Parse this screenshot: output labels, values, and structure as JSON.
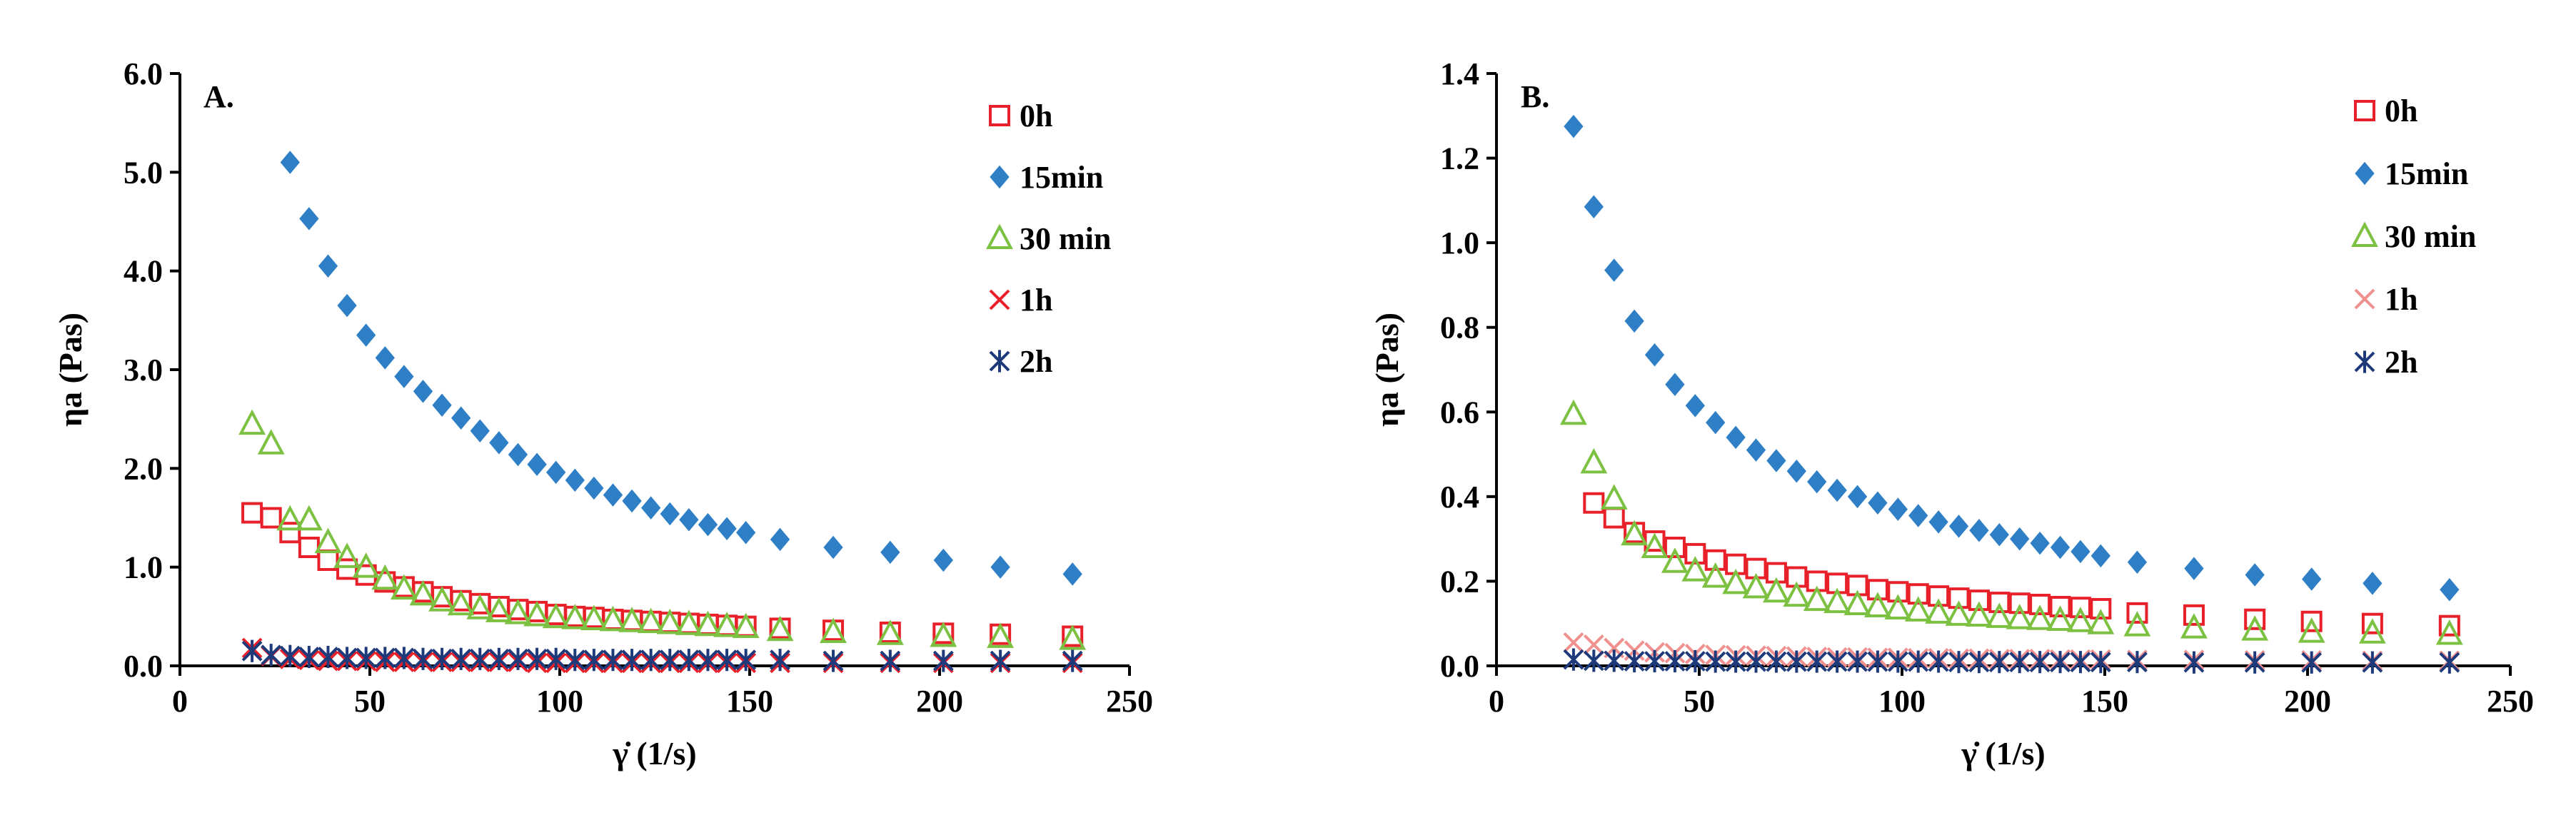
{
  "chart_data": [
    {
      "type": "scatter",
      "panel": "A.",
      "xlabel": "γ̇ (1/s)",
      "ylabel": "ηa (Pas)",
      "xlim": [
        0,
        250
      ],
      "ylim": [
        0,
        6
      ],
      "xticks": [
        0,
        50,
        100,
        150,
        200,
        250
      ],
      "yticks": [
        0,
        1,
        2,
        3,
        4,
        5,
        6
      ],
      "xtick_labels": [
        "0",
        "50",
        "100",
        "150",
        "200",
        "250"
      ],
      "ytick_labels": [
        "0.0",
        "1.0",
        "2.0",
        "3.0",
        "4.0",
        "5.0",
        "6.0"
      ],
      "legend_position": "top-right",
      "series": [
        {
          "name": "0h",
          "marker": "square",
          "color": "#e8202a",
          "x": [
            19,
            24,
            29,
            34,
            39,
            44,
            49,
            54,
            59,
            64,
            69,
            74,
            79,
            84,
            89,
            94,
            99,
            104,
            109,
            114,
            119,
            124,
            129,
            134,
            139,
            144,
            149,
            158,
            172,
            187,
            201,
            216,
            235
          ],
          "y": [
            1.55,
            1.5,
            1.35,
            1.2,
            1.07,
            0.98,
            0.92,
            0.85,
            0.8,
            0.75,
            0.7,
            0.66,
            0.63,
            0.6,
            0.57,
            0.55,
            0.52,
            0.5,
            0.49,
            0.47,
            0.46,
            0.45,
            0.44,
            0.43,
            0.42,
            0.41,
            0.4,
            0.38,
            0.36,
            0.34,
            0.33,
            0.32,
            0.3
          ]
        },
        {
          "name": "15min",
          "marker": "diamond",
          "color": "#2e7fc6",
          "x": [
            29,
            34,
            39,
            44,
            49,
            54,
            59,
            64,
            69,
            74,
            79,
            84,
            89,
            94,
            99,
            104,
            109,
            114,
            119,
            124,
            129,
            134,
            139,
            144,
            149,
            158,
            172,
            187,
            201,
            216,
            235
          ],
          "y": [
            5.1,
            4.53,
            4.05,
            3.65,
            3.35,
            3.12,
            2.93,
            2.78,
            2.64,
            2.51,
            2.38,
            2.26,
            2.14,
            2.04,
            1.96,
            1.88,
            1.8,
            1.73,
            1.67,
            1.6,
            1.54,
            1.48,
            1.43,
            1.39,
            1.35,
            1.28,
            1.2,
            1.15,
            1.07,
            1.0,
            0.93
          ]
        },
        {
          "name": "30 min",
          "marker": "triangle",
          "color": "#7dc142",
          "x": [
            19,
            24,
            29,
            34,
            39,
            44,
            49,
            54,
            59,
            64,
            69,
            74,
            79,
            84,
            89,
            94,
            99,
            104,
            109,
            114,
            119,
            124,
            129,
            134,
            139,
            144,
            149,
            158,
            172,
            187,
            201,
            216,
            235
          ],
          "y": [
            2.45,
            2.25,
            1.48,
            1.48,
            1.25,
            1.1,
            1.0,
            0.88,
            0.78,
            0.72,
            0.66,
            0.62,
            0.58,
            0.55,
            0.53,
            0.51,
            0.49,
            0.48,
            0.47,
            0.46,
            0.45,
            0.44,
            0.43,
            0.42,
            0.41,
            0.4,
            0.39,
            0.36,
            0.34,
            0.32,
            0.3,
            0.29,
            0.27
          ]
        },
        {
          "name": "1h",
          "marker": "x",
          "color": "#e8202a",
          "x": [
            19,
            24,
            29,
            34,
            39,
            44,
            49,
            54,
            59,
            64,
            69,
            74,
            79,
            84,
            89,
            94,
            99,
            104,
            109,
            114,
            119,
            124,
            129,
            134,
            139,
            144,
            149,
            158,
            172,
            187,
            201,
            216,
            235
          ],
          "y": [
            0.18,
            0.1,
            0.07,
            0.06,
            0.05,
            0.05,
            0.05,
            0.04,
            0.04,
            0.04,
            0.04,
            0.04,
            0.04,
            0.04,
            0.04,
            0.03,
            0.03,
            0.03,
            0.03,
            0.03,
            0.03,
            0.03,
            0.03,
            0.03,
            0.03,
            0.03,
            0.03,
            0.03,
            0.03,
            0.03,
            0.03,
            0.03,
            0.03
          ]
        },
        {
          "name": "2h",
          "marker": "star",
          "color": "#1f3a7a",
          "x": [
            19,
            24,
            29,
            34,
            39,
            44,
            49,
            54,
            59,
            64,
            69,
            74,
            79,
            84,
            89,
            94,
            99,
            104,
            109,
            114,
            119,
            124,
            129,
            134,
            139,
            144,
            149,
            158,
            172,
            187,
            201,
            216,
            235
          ],
          "y": [
            0.15,
            0.11,
            0.1,
            0.09,
            0.09,
            0.08,
            0.08,
            0.08,
            0.08,
            0.07,
            0.07,
            0.07,
            0.07,
            0.07,
            0.07,
            0.07,
            0.07,
            0.06,
            0.06,
            0.06,
            0.06,
            0.06,
            0.06,
            0.06,
            0.06,
            0.06,
            0.06,
            0.06,
            0.05,
            0.05,
            0.05,
            0.05,
            0.05
          ]
        }
      ]
    },
    {
      "type": "scatter",
      "panel": "B.",
      "xlabel": "γ̇ (1/s)",
      "ylabel": "ηa (Pas)",
      "xlim": [
        0,
        250
      ],
      "ylim": [
        0,
        1.4
      ],
      "xticks": [
        0,
        50,
        100,
        150,
        200,
        250
      ],
      "yticks": [
        0,
        0.2,
        0.4,
        0.6,
        0.8,
        1.0,
        1.2,
        1.4
      ],
      "xtick_labels": [
        "0",
        "50",
        "100",
        "150",
        "200",
        "250"
      ],
      "ytick_labels": [
        "0.0",
        "0.2",
        "0.4",
        "0.6",
        "0.8",
        "1.0",
        "1.2",
        "1.4"
      ],
      "legend_position": "top-right",
      "series": [
        {
          "name": "0h",
          "marker": "square",
          "color": "#e8202a",
          "x": [
            24,
            29,
            34,
            39,
            44,
            49,
            54,
            59,
            64,
            69,
            74,
            79,
            84,
            89,
            94,
            99,
            104,
            109,
            114,
            119,
            124,
            129,
            134,
            139,
            144,
            149,
            158,
            172,
            187,
            201,
            216,
            235
          ],
          "y": [
            0.385,
            0.35,
            0.315,
            0.295,
            0.28,
            0.265,
            0.25,
            0.24,
            0.23,
            0.22,
            0.21,
            0.2,
            0.195,
            0.19,
            0.18,
            0.175,
            0.17,
            0.165,
            0.16,
            0.155,
            0.15,
            0.148,
            0.145,
            0.14,
            0.138,
            0.135,
            0.125,
            0.12,
            0.11,
            0.105,
            0.1,
            0.095
          ]
        },
        {
          "name": "15min",
          "marker": "diamond",
          "color": "#2e7fc6",
          "x": [
            19,
            24,
            29,
            34,
            39,
            44,
            49,
            54,
            59,
            64,
            69,
            74,
            79,
            84,
            89,
            94,
            99,
            104,
            109,
            114,
            119,
            124,
            129,
            134,
            139,
            144,
            149,
            158,
            172,
            187,
            201,
            216,
            235
          ],
          "y": [
            1.275,
            1.085,
            0.935,
            0.815,
            0.735,
            0.665,
            0.615,
            0.575,
            0.54,
            0.51,
            0.485,
            0.46,
            0.435,
            0.415,
            0.4,
            0.385,
            0.37,
            0.355,
            0.34,
            0.33,
            0.32,
            0.31,
            0.3,
            0.29,
            0.28,
            0.27,
            0.26,
            0.245,
            0.23,
            0.215,
            0.205,
            0.195,
            0.18
          ]
        },
        {
          "name": "30 min",
          "marker": "triangle",
          "color": "#7dc142",
          "x": [
            19,
            24,
            29,
            34,
            39,
            44,
            49,
            54,
            59,
            64,
            69,
            74,
            79,
            84,
            89,
            94,
            99,
            104,
            109,
            114,
            119,
            124,
            129,
            134,
            139,
            144,
            149,
            158,
            172,
            187,
            201,
            216,
            235
          ],
          "y": [
            0.595,
            0.48,
            0.395,
            0.31,
            0.28,
            0.245,
            0.225,
            0.21,
            0.195,
            0.185,
            0.175,
            0.165,
            0.155,
            0.15,
            0.145,
            0.14,
            0.135,
            0.13,
            0.125,
            0.12,
            0.118,
            0.115,
            0.112,
            0.11,
            0.108,
            0.105,
            0.1,
            0.095,
            0.09,
            0.085,
            0.08,
            0.078,
            0.075
          ]
        },
        {
          "name": "1h",
          "marker": "x",
          "color": "#f0908f",
          "x": [
            19,
            24,
            29,
            34,
            39,
            44,
            49,
            54,
            59,
            64,
            69,
            74,
            79,
            84,
            89,
            94,
            99,
            104,
            109,
            114,
            119,
            124,
            129,
            134,
            139,
            144,
            149,
            158,
            172,
            187,
            201,
            216,
            235
          ],
          "y": [
            0.055,
            0.05,
            0.042,
            0.036,
            0.032,
            0.03,
            0.028,
            0.026,
            0.025,
            0.024,
            0.023,
            0.022,
            0.021,
            0.02,
            0.02,
            0.019,
            0.019,
            0.018,
            0.018,
            0.017,
            0.017,
            0.016,
            0.016,
            0.016,
            0.015,
            0.015,
            0.015,
            0.014,
            0.014,
            0.013,
            0.013,
            0.012,
            0.012
          ]
        },
        {
          "name": "2h",
          "marker": "star",
          "color": "#1f3a7a",
          "x": [
            19,
            24,
            29,
            34,
            39,
            44,
            49,
            54,
            59,
            64,
            69,
            74,
            79,
            84,
            89,
            94,
            99,
            104,
            109,
            114,
            119,
            124,
            129,
            134,
            139,
            144,
            149,
            158,
            172,
            187,
            201,
            216,
            235
          ],
          "y": [
            0.015,
            0.012,
            0.012,
            0.011,
            0.011,
            0.011,
            0.011,
            0.01,
            0.01,
            0.01,
            0.01,
            0.01,
            0.01,
            0.01,
            0.01,
            0.01,
            0.01,
            0.01,
            0.01,
            0.009,
            0.009,
            0.009,
            0.009,
            0.009,
            0.009,
            0.009,
            0.009,
            0.009,
            0.008,
            0.008,
            0.008,
            0.008,
            0.008
          ]
        }
      ]
    }
  ]
}
